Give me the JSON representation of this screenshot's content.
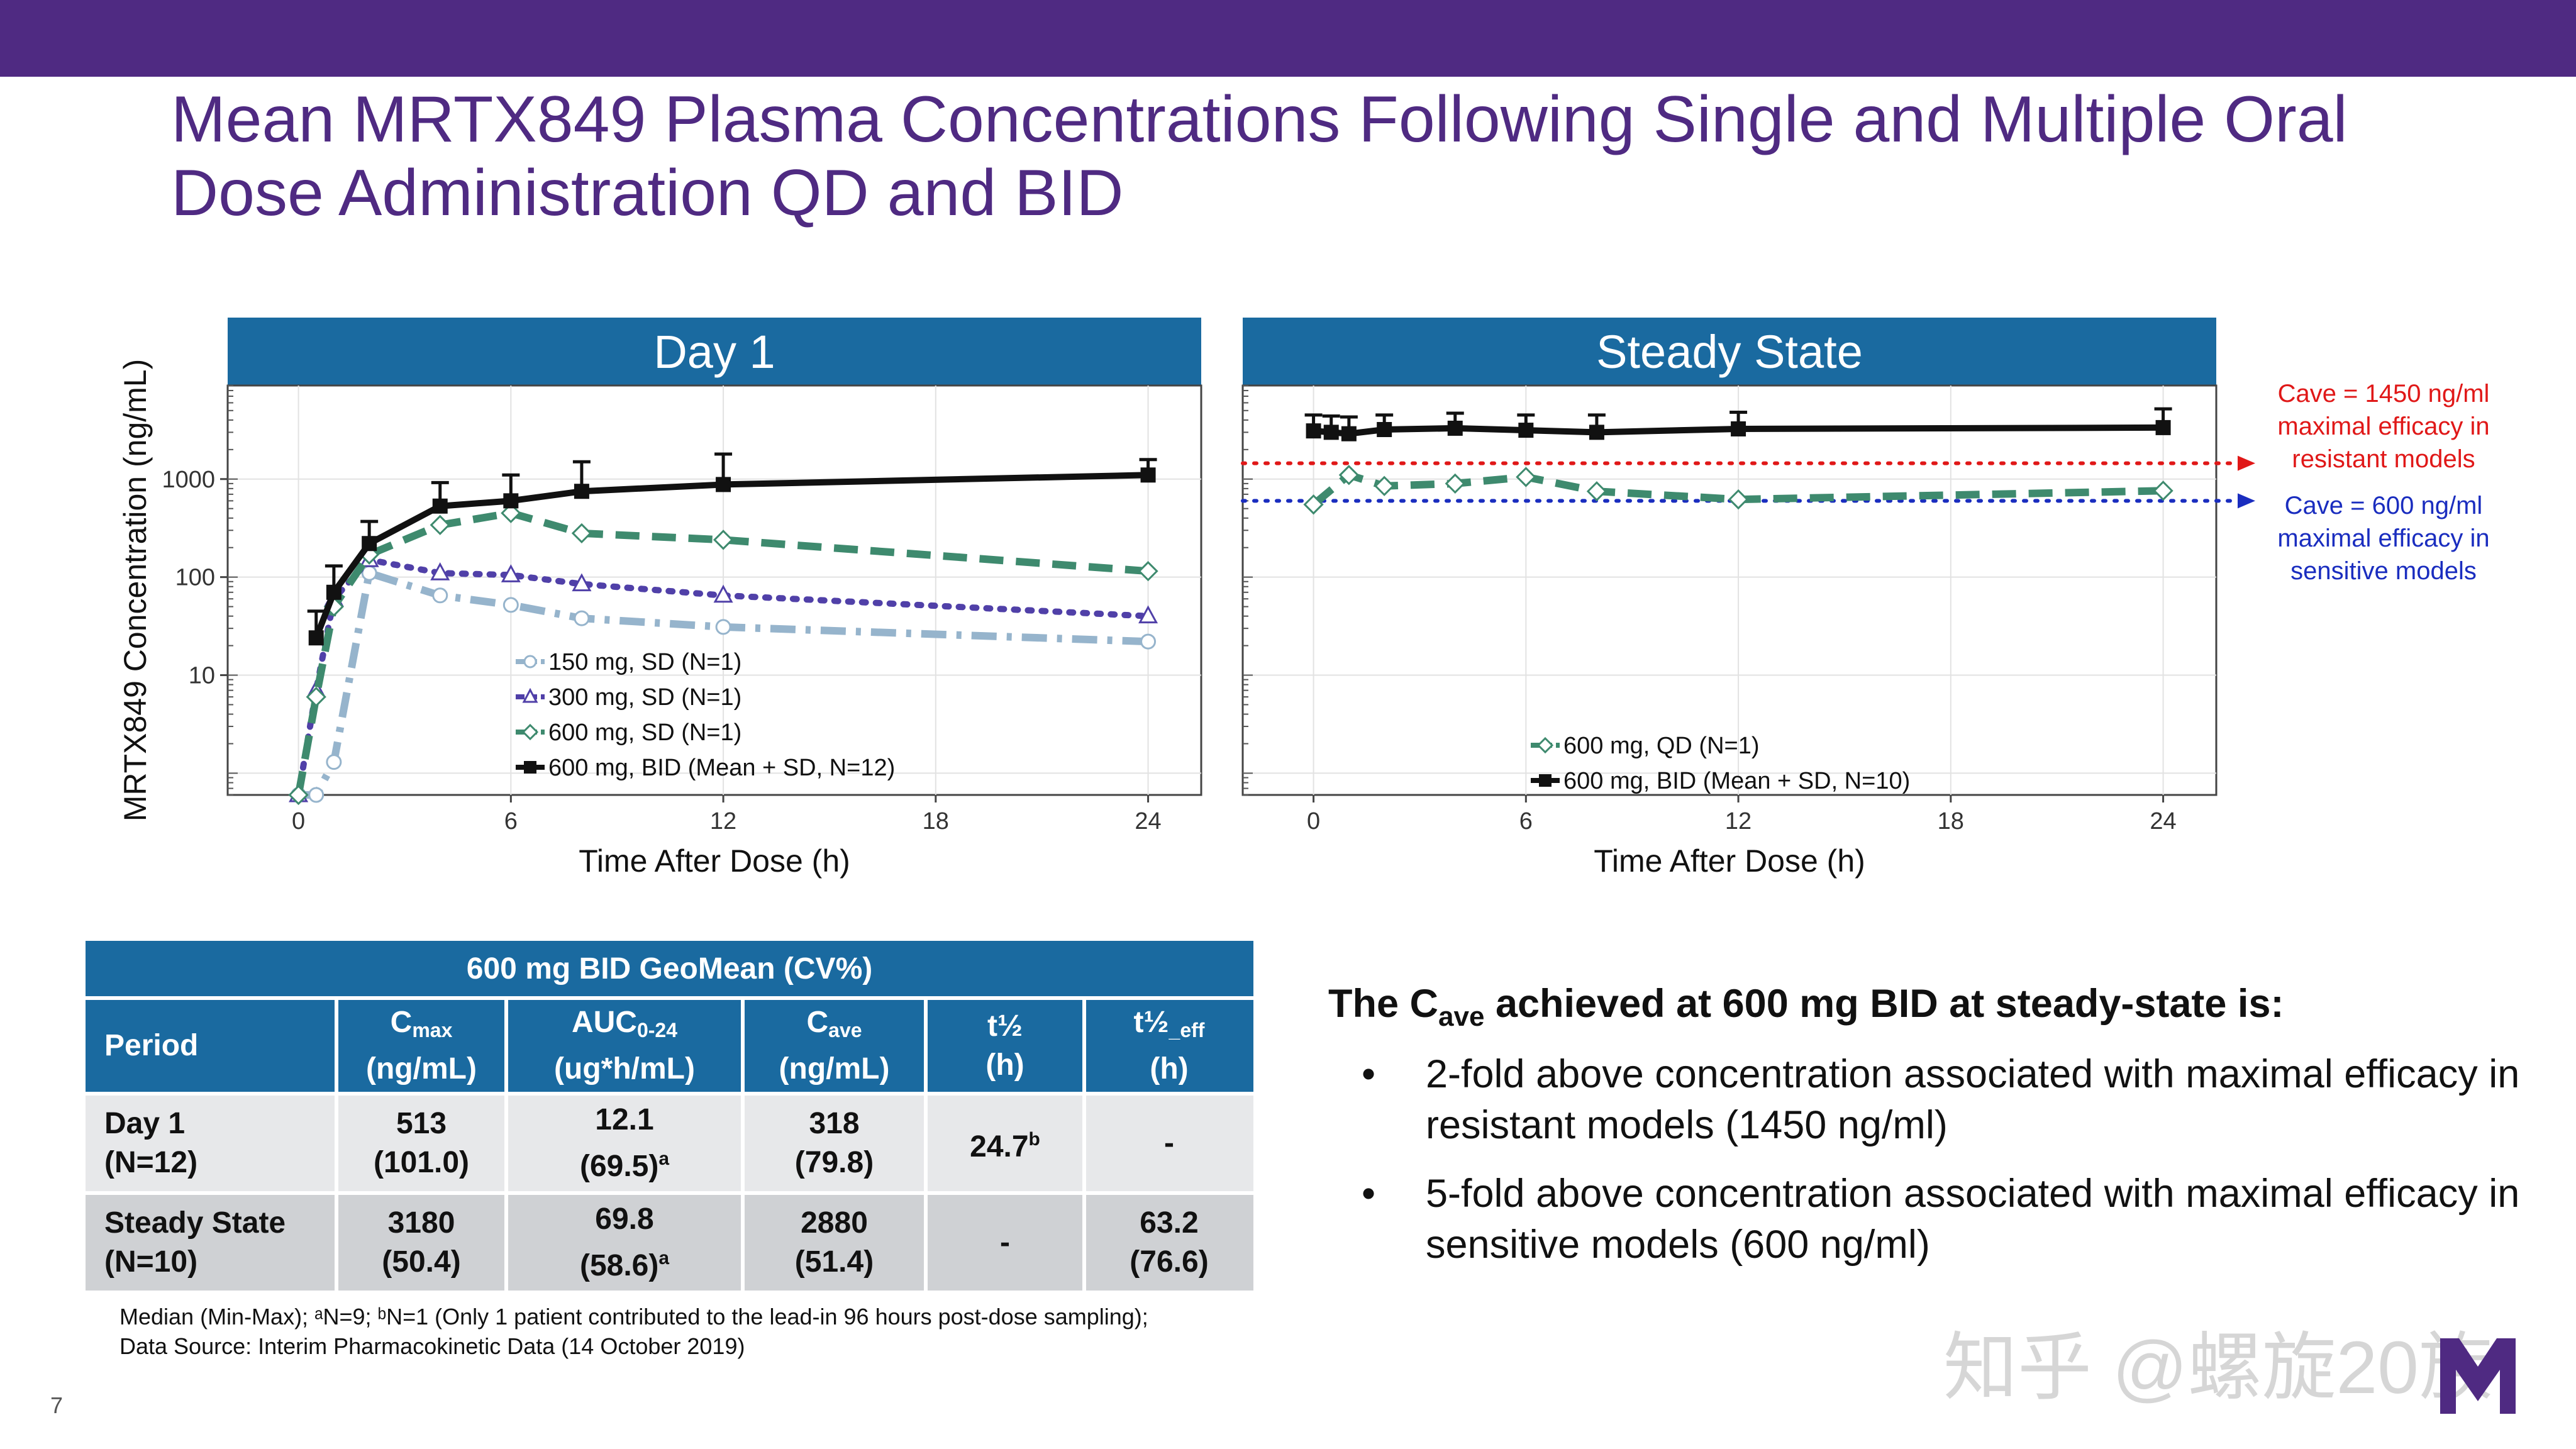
{
  "slide": {
    "title_line1": "Mean MRTX849 Plasma Concentrations Following Single and Multiple Oral",
    "title_line2": "Dose Administration QD and BID",
    "page_number": "7",
    "watermark": "知乎 @螺旋20族"
  },
  "colors": {
    "brand": "#4f2a82",
    "panel_header": "#1a6aa0",
    "red_line": "#e01818",
    "blue_line": "#1a2dbf"
  },
  "chart_data": [
    {
      "type": "line",
      "title": "Day 1",
      "xlabel": "Time After Dose (h)",
      "ylabel": "MRTX849 Concentration (ng/mL)",
      "yscale": "log",
      "xlim": [
        -2,
        25.5
      ],
      "ylim": [
        0.6,
        9000
      ],
      "xticks": [
        0,
        6,
        12,
        18,
        24
      ],
      "yticks": [
        10,
        100,
        1000
      ],
      "series": [
        {
          "name": "150 mg, SD (N=1)",
          "color": "#96b4cc",
          "dash": "dashdot",
          "marker": "circle",
          "x": [
            0,
            0.5,
            1,
            2,
            4,
            6,
            8,
            12,
            24
          ],
          "y": [
            0.5,
            0.5,
            1.3,
            110,
            65,
            52,
            38,
            31,
            22
          ]
        },
        {
          "name": "300 mg, SD (N=1)",
          "color": "#5040a8",
          "dash": "dotted",
          "marker": "triangle",
          "x": [
            0,
            0.5,
            1,
            2,
            4,
            6,
            8,
            12,
            24
          ],
          "y": [
            0.5,
            7,
            60,
            150,
            110,
            105,
            85,
            65,
            40
          ]
        },
        {
          "name": "600 mg, SD (N=1)",
          "color": "#3e8a6e",
          "dash": "dashed",
          "marker": "diamond",
          "x": [
            0,
            0.5,
            1,
            2,
            4,
            6,
            8,
            12,
            24
          ],
          "y": [
            0.5,
            6,
            50,
            170,
            340,
            450,
            280,
            240,
            115
          ]
        },
        {
          "name": "600 mg, BID (Mean + SD, N=12)",
          "color": "#111111",
          "dash": "solid",
          "marker": "square",
          "x": [
            0.5,
            1,
            2,
            4,
            6,
            8,
            12,
            24
          ],
          "y": [
            24,
            70,
            220,
            530,
            600,
            750,
            880,
            1100
          ],
          "upper": [
            45,
            130,
            370,
            920,
            1100,
            1500,
            1800,
            1580
          ]
        }
      ],
      "legend_position": "bottom-center"
    },
    {
      "type": "line",
      "title": "Steady State",
      "xlabel": "Time After Dose (h)",
      "yscale": "log",
      "xlim": [
        -2,
        25.5
      ],
      "ylim": [
        0.6,
        9000
      ],
      "xticks": [
        0,
        6,
        12,
        18,
        24
      ],
      "series": [
        {
          "name": "600 mg, QD (N=1)",
          "color": "#3e8a6e",
          "dash": "dashed",
          "marker": "diamond",
          "x": [
            0,
            1,
            2,
            4,
            6,
            8,
            12,
            24
          ],
          "y": [
            550,
            1100,
            850,
            900,
            1050,
            750,
            620,
            760
          ]
        },
        {
          "name": "600 mg, BID (Mean + SD, N=10)",
          "color": "#111111",
          "dash": "solid",
          "marker": "square",
          "x": [
            0,
            0.5,
            1,
            2,
            4,
            6,
            8,
            12,
            24
          ],
          "y": [
            3100,
            3000,
            2900,
            3200,
            3300,
            3150,
            3000,
            3250,
            3350
          ],
          "upper": [
            4500,
            4400,
            4300,
            4500,
            4700,
            4500,
            4500,
            4800,
            5200
          ]
        }
      ],
      "reference_lines": [
        {
          "value": 1450,
          "color": "#e01818",
          "label": "Cave = 1450 ng/ml\nmaximal efficacy in\nresistant models"
        },
        {
          "value": 600,
          "color": "#1a2dbf",
          "label": "Cave = 600 ng/ml\nmaximal efficacy in\nsensitive models"
        }
      ],
      "legend_position": "bottom-center"
    }
  ],
  "annotations": {
    "red": [
      "Cave = 1450 ng/ml",
      "maximal efficacy in",
      "resistant models"
    ],
    "blue": [
      "Cave = 600 ng/ml",
      "maximal efficacy in",
      "sensitive models"
    ]
  },
  "table": {
    "title": "600 mg BID GeoMean (CV%)",
    "headers": {
      "period": "Period",
      "cmax": {
        "main": "C",
        "sub": "max",
        "unit": "(ng/mL)"
      },
      "auc": {
        "main": "AUC",
        "sub": "0-24",
        "unit": "(ug*h/mL)"
      },
      "cave": {
        "main": "C",
        "sub": "ave",
        "unit": "(ng/mL)"
      },
      "thalf": {
        "main": "t½",
        "unit": "(h)"
      },
      "thalf_eff": {
        "main": "t½",
        "sub": "_eff",
        "unit": "(h)"
      }
    },
    "rows": [
      {
        "period": "Day 1",
        "n": "(N=12)",
        "cmax": "513",
        "cmax_cv": "(101.0)",
        "auc": "12.1",
        "auc_cv": "(69.5)",
        "auc_sup": "a",
        "cave": "318",
        "cave_cv": "(79.8)",
        "thalf": "24.7",
        "thalf_sup": "b",
        "thalf_eff": "-"
      },
      {
        "period": "Steady State",
        "n": "(N=10)",
        "cmax": "3180",
        "cmax_cv": "(50.4)",
        "auc": "69.8",
        "auc_cv": "(58.6)",
        "auc_sup": "a",
        "cave": "2880",
        "cave_cv": "(51.4)",
        "thalf": "-",
        "thalf_eff": "63.2",
        "thalf_eff_cv": "(76.6)"
      }
    ],
    "footnote_line1": "Median (Min-Max); ᵃN=9; ᵇN=1 (Only 1 patient contributed to the lead-in 96 hours post-dose sampling);",
    "footnote_line2": "Data Source: Interim Pharmacokinetic Data (14 October 2019)"
  },
  "summary": {
    "head_pre": "The C",
    "head_sub": "ave",
    "head_post": " achieved at 600 mg BID at steady-state is:",
    "bullet": "•",
    "bullets": [
      "2-fold above concentration associated with maximal efficacy in resistant models (1450 ng/ml)",
      "5-fold above concentration associated with maximal efficacy in sensitive models (600 ng/ml)"
    ]
  }
}
